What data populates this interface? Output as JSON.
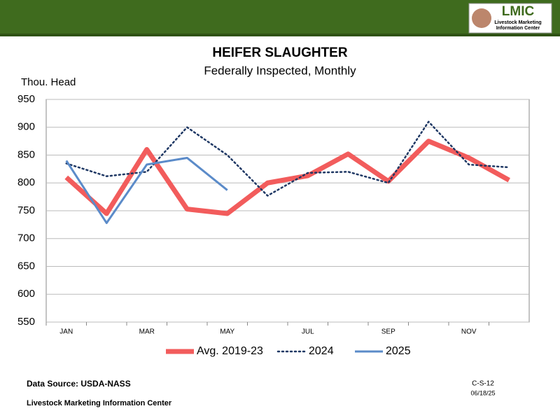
{
  "header": {
    "logo": "LMIC",
    "logo_lines": [
      "Livestock Marketing",
      "Information Center"
    ]
  },
  "chart_data": {
    "type": "line",
    "title": "HEIFER SLAUGHTER",
    "subtitle": "Federally Inspected, Monthly",
    "y_label": "Thou. Head",
    "categories": [
      "JAN",
      null,
      "MAR",
      null,
      "MAY",
      null,
      "JUL",
      null,
      "SEP",
      null,
      "NOV",
      null
    ],
    "series": [
      {
        "name": "Avg. 2019-23",
        "color": "#f25c5c",
        "width": 7,
        "dash": "solid",
        "values": [
          810,
          745,
          860,
          753,
          745,
          800,
          813,
          852,
          803,
          875,
          845,
          805
        ]
      },
      {
        "name": "2024",
        "color": "#1f3864",
        "width": 2.5,
        "dash": "dotted",
        "values": [
          835,
          812,
          820,
          900,
          850,
          777,
          818,
          820,
          800,
          910,
          833,
          828
        ]
      },
      {
        "name": "2025",
        "color": "#5b8bc9",
        "width": 3,
        "dash": "solid",
        "values": [
          840,
          728,
          833,
          845,
          787,
          null,
          null,
          null,
          null,
          null,
          null,
          null
        ]
      }
    ],
    "ylim": [
      550,
      950
    ],
    "yticks": [
      550,
      600,
      650,
      700,
      750,
      800,
      850,
      900,
      950
    ],
    "grid": true,
    "legend": "bottom"
  },
  "footer": {
    "source": "Data Source:  USDA-NASS",
    "org": "Livestock Marketing Information Center",
    "code": "C-S-12",
    "date": "06/18/25"
  }
}
